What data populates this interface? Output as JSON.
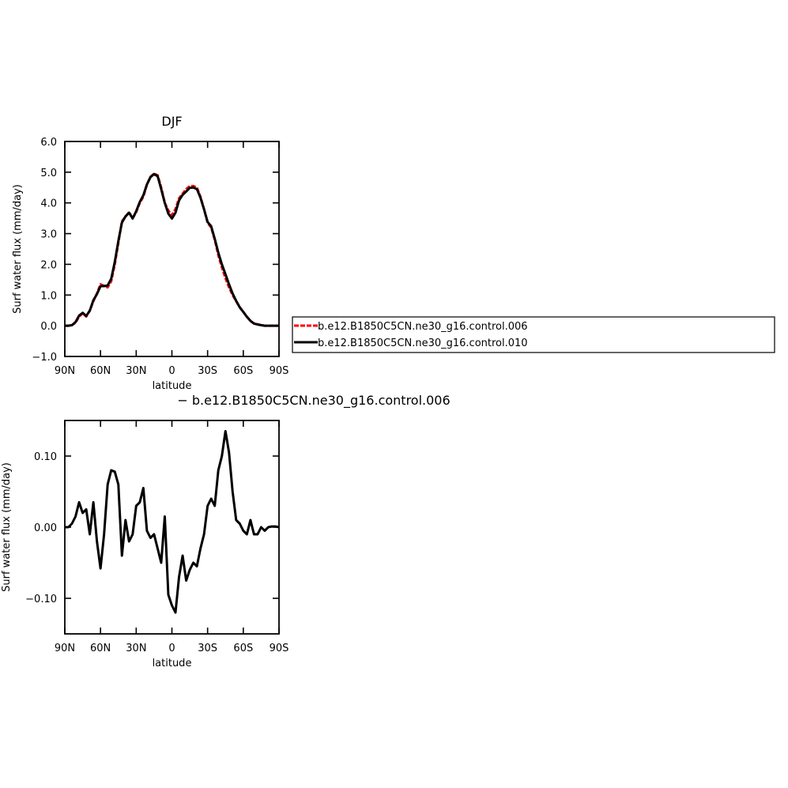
{
  "chart_data": [
    {
      "type": "line",
      "title": "DJF",
      "ylabel": "Surf water flux (mm/day)",
      "xlabel": "latitude",
      "x": [
        90,
        87,
        84,
        81,
        78,
        75,
        72,
        69,
        66,
        63,
        60,
        57,
        54,
        51,
        48,
        45,
        42,
        39,
        36,
        33,
        30,
        27,
        24,
        21,
        18,
        15,
        12,
        9,
        6,
        3,
        0,
        -3,
        -6,
        -9,
        -12,
        -15,
        -18,
        -21,
        -24,
        -27,
        -30,
        -33,
        -36,
        -39,
        -42,
        -45,
        -48,
        -51,
        -54,
        -57,
        -60,
        -63,
        -66,
        -69,
        -72,
        -75,
        -78,
        -81,
        -84,
        -87,
        -90
      ],
      "xlim": [
        90,
        -90
      ],
      "xticks": [
        {
          "value": 90,
          "label": "90N"
        },
        {
          "value": 60,
          "label": "60N"
        },
        {
          "value": 30,
          "label": "30N"
        },
        0,
        {
          "value": -30,
          "label": "30S"
        },
        {
          "value": -60,
          "label": "60S"
        },
        {
          "value": -90,
          "label": "90S"
        }
      ],
      "ylim": [
        -1,
        6
      ],
      "yticks": [
        {
          "value": -1,
          "label": "−1.0"
        },
        {
          "value": 0,
          "label": "0.0"
        },
        {
          "value": 1,
          "label": "1.0"
        },
        {
          "value": 2,
          "label": "2.0"
        },
        {
          "value": 3,
          "label": "3.0"
        },
        {
          "value": 4,
          "label": "4.0"
        },
        {
          "value": 5,
          "label": "5.0"
        },
        {
          "value": 6,
          "label": "6.0"
        }
      ],
      "series": [
        {
          "name": "b.e12.B1850C5CN.ne30_g16.control.006",
          "color": "#ff0000",
          "linestyle": "dashed",
          "values": [
            0,
            0,
            0.02,
            0.1,
            0.3,
            0.4,
            0.3,
            0.5,
            0.8,
            1.05,
            1.35,
            1.3,
            1.25,
            1.45,
            2.0,
            2.7,
            3.4,
            3.55,
            3.7,
            3.5,
            3.7,
            4.0,
            4.2,
            4.6,
            4.85,
            4.95,
            4.9,
            4.5,
            4.0,
            3.75,
            3.6,
            3.8,
            4.15,
            4.3,
            4.45,
            4.55,
            4.55,
            4.5,
            4.2,
            3.8,
            3.35,
            3.2,
            2.8,
            2.3,
            1.9,
            1.55,
            1.25,
            1.0,
            0.8,
            0.6,
            0.45,
            0.3,
            0.15,
            0.08,
            0.05,
            0.02,
            0,
            0,
            0,
            0,
            0
          ]
        },
        {
          "name": "b.e12.B1850C5CN.ne30_g16.control.010",
          "color": "#000000",
          "linestyle": "solid",
          "values": [
            0,
            0,
            0.02,
            0.12,
            0.33,
            0.42,
            0.32,
            0.49,
            0.83,
            1.03,
            1.29,
            1.29,
            1.31,
            1.53,
            2.08,
            2.76,
            3.36,
            3.56,
            3.68,
            3.49,
            3.73,
            4.03,
            4.25,
            4.6,
            4.84,
            4.94,
            4.87,
            4.45,
            4.0,
            3.65,
            3.49,
            3.68,
            4.08,
            4.26,
            4.37,
            4.49,
            4.5,
            4.45,
            4.17,
            3.79,
            3.38,
            3.24,
            2.83,
            2.38,
            2.0,
            1.68,
            1.35,
            1.05,
            0.81,
            0.6,
            0.45,
            0.29,
            0.16,
            0.07,
            0.04,
            0.02,
            0,
            0,
            0,
            0,
            0
          ]
        }
      ]
    },
    {
      "type": "line",
      "title": "− b.e12.B1850C5CN.ne30_g16.control.006",
      "ylabel": "Surf water flux (mm/day)",
      "xlabel": "latitude",
      "x": [
        90,
        87,
        84,
        81,
        78,
        75,
        72,
        69,
        66,
        63,
        60,
        57,
        54,
        51,
        48,
        45,
        42,
        39,
        36,
        33,
        30,
        27,
        24,
        21,
        18,
        15,
        12,
        9,
        6,
        3,
        0,
        -3,
        -6,
        -9,
        -12,
        -15,
        -18,
        -21,
        -24,
        -27,
        -30,
        -33,
        -36,
        -39,
        -42,
        -45,
        -48,
        -51,
        -54,
        -57,
        -60,
        -63,
        -66,
        -69,
        -72,
        -75,
        -78,
        -81,
        -84,
        -87,
        -90
      ],
      "xlim": [
        90,
        -90
      ],
      "xticks": [
        {
          "value": 90,
          "label": "90N"
        },
        {
          "value": 60,
          "label": "60N"
        },
        {
          "value": 30,
          "label": "30N"
        },
        0,
        {
          "value": -30,
          "label": "30S"
        },
        {
          "value": -60,
          "label": "60S"
        },
        {
          "value": -90,
          "label": "90S"
        }
      ],
      "ylim": [
        -0.15,
        0.15
      ],
      "yticks": [
        {
          "value": -0.1,
          "label": "−0.10"
        },
        {
          "value": 0,
          "label": "0.00"
        },
        {
          "value": 0.1,
          "label": "0.10"
        }
      ],
      "series": [
        {
          "color": "#000000",
          "linestyle": "solid",
          "values": [
            0,
            0,
            0.005,
            0.015,
            0.035,
            0.02,
            0.025,
            -0.01,
            0.035,
            -0.02,
            -0.058,
            -0.01,
            0.06,
            0.08,
            0.078,
            0.06,
            -0.04,
            0.01,
            -0.02,
            -0.01,
            0.03,
            0.035,
            0.055,
            -0.005,
            -0.015,
            -0.01,
            -0.03,
            -0.05,
            0.015,
            -0.095,
            -0.11,
            -0.12,
            -0.07,
            -0.04,
            -0.075,
            -0.06,
            -0.05,
            -0.055,
            -0.03,
            -0.01,
            0.03,
            0.04,
            0.03,
            0.08,
            0.1,
            0.135,
            0.105,
            0.05,
            0.01,
            0.005,
            -0.005,
            -0.01,
            0.01,
            -0.01,
            -0.01,
            0,
            -0.005,
            0,
            0.001,
            0.001,
            0
          ]
        }
      ]
    }
  ]
}
